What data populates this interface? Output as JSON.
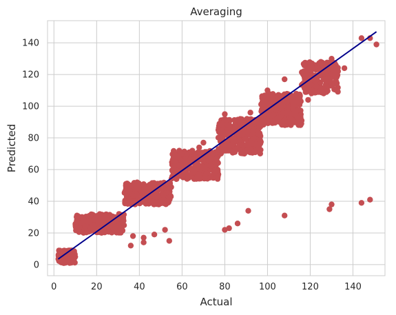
{
  "chart_data": {
    "type": "scatter",
    "title": "Averaging",
    "xlabel": "Actual",
    "ylabel": "Predicted",
    "xlim": [
      -3,
      155
    ],
    "ylim": [
      -7,
      154
    ],
    "xticks": [
      0,
      20,
      40,
      60,
      80,
      100,
      120,
      140
    ],
    "yticks": [
      0,
      20,
      40,
      60,
      80,
      100,
      120,
      140
    ],
    "grid": true,
    "colors": {
      "points": "#c44e52",
      "fit_line": "#00008b",
      "grid": "#cccccc",
      "spine": "#cccccc"
    },
    "clusters": [
      {
        "x_range": [
          2,
          10
        ],
        "y_range": [
          1,
          9
        ],
        "count": 160
      },
      {
        "x_range": [
          10,
          33
        ],
        "y_range": [
          20,
          32
        ],
        "count": 220
      },
      {
        "x_range": [
          33,
          55
        ],
        "y_range": [
          38,
          52
        ],
        "count": 300
      },
      {
        "x_range": [
          55,
          77
        ],
        "y_range": [
          54,
          72
        ],
        "count": 300
      },
      {
        "x_range": [
          77,
          97
        ],
        "y_range": [
          70,
          92
        ],
        "count": 300
      },
      {
        "x_range": [
          97,
          116
        ],
        "y_range": [
          88,
          108
        ],
        "count": 280
      },
      {
        "x_range": [
          116,
          133
        ],
        "y_range": [
          108,
          128
        ],
        "count": 200
      }
    ],
    "outliers": [
      [
        36,
        12
      ],
      [
        37,
        18
      ],
      [
        42,
        17
      ],
      [
        42,
        14
      ],
      [
        47,
        19
      ],
      [
        52,
        22
      ],
      [
        54,
        15
      ],
      [
        80,
        22
      ],
      [
        82,
        23
      ],
      [
        86,
        26
      ],
      [
        91,
        34
      ],
      [
        108,
        31
      ],
      [
        129,
        35
      ],
      [
        130,
        38
      ],
      [
        144,
        39
      ],
      [
        148,
        41
      ],
      [
        144,
        143
      ],
      [
        148,
        143
      ],
      [
        151,
        139
      ],
      [
        130,
        130
      ],
      [
        120,
        118
      ],
      [
        125,
        128
      ],
      [
        60,
        60
      ],
      [
        64,
        71
      ],
      [
        68,
        74
      ],
      [
        80,
        95
      ],
      [
        77,
        85
      ],
      [
        100,
        110
      ],
      [
        108,
        117
      ],
      [
        75,
        58
      ],
      [
        92,
        96
      ],
      [
        57,
        68
      ],
      [
        70,
        77
      ],
      [
        86,
        84
      ],
      [
        112,
        100
      ],
      [
        119,
        104
      ],
      [
        133,
        122
      ],
      [
        136,
        124
      ]
    ],
    "fit_line": {
      "x": [
        2,
        151
      ],
      "y": [
        3.5,
        147
      ]
    }
  }
}
